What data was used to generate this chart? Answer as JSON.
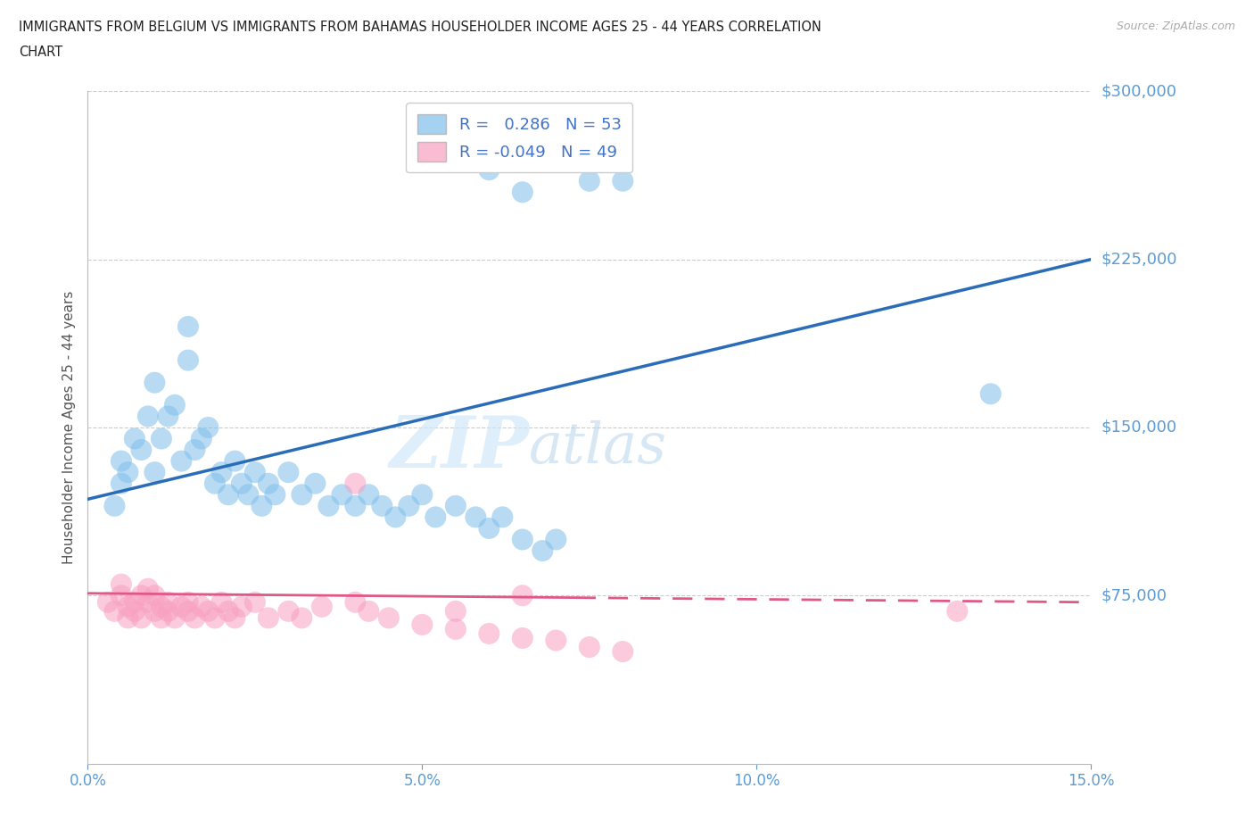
{
  "title_line1": "IMMIGRANTS FROM BELGIUM VS IMMIGRANTS FROM BAHAMAS HOUSEHOLDER INCOME AGES 25 - 44 YEARS CORRELATION",
  "title_line2": "CHART",
  "source": "Source: ZipAtlas.com",
  "ylabel": "Householder Income Ages 25 - 44 years",
  "xlim": [
    0.0,
    0.15
  ],
  "ylim": [
    0,
    300000
  ],
  "yticks": [
    0,
    75000,
    150000,
    225000,
    300000
  ],
  "ytick_labels": [
    "",
    "$75,000",
    "$150,000",
    "$225,000",
    "$300,000"
  ],
  "xticks": [
    0.0,
    0.05,
    0.1,
    0.15
  ],
  "xtick_labels": [
    "0.0%",
    "5.0%",
    "10.0%",
    "15.0%"
  ],
  "belgium_color": "#7fbfea",
  "bahamas_color": "#f8a0c0",
  "belgium_label": "Immigrants from Belgium",
  "bahamas_label": "Immigrants from Bahamas",
  "R_belgium": 0.286,
  "N_belgium": 53,
  "R_bahamas": -0.049,
  "N_bahamas": 49,
  "belgium_scatter_x": [
    0.005,
    0.005,
    0.006,
    0.007,
    0.008,
    0.009,
    0.01,
    0.01,
    0.011,
    0.012,
    0.013,
    0.014,
    0.015,
    0.016,
    0.017,
    0.018,
    0.019,
    0.02,
    0.021,
    0.022,
    0.023,
    0.024,
    0.025,
    0.026,
    0.027,
    0.028,
    0.03,
    0.032,
    0.034,
    0.036,
    0.038,
    0.04,
    0.042,
    0.044,
    0.046,
    0.048,
    0.05,
    0.052,
    0.055,
    0.058,
    0.06,
    0.062,
    0.065,
    0.068,
    0.07,
    0.055,
    0.06,
    0.065,
    0.075,
    0.08,
    0.135,
    0.004,
    0.015
  ],
  "belgium_scatter_y": [
    125000,
    135000,
    130000,
    145000,
    140000,
    155000,
    170000,
    130000,
    145000,
    155000,
    160000,
    135000,
    180000,
    140000,
    145000,
    150000,
    125000,
    130000,
    120000,
    135000,
    125000,
    120000,
    130000,
    115000,
    125000,
    120000,
    130000,
    120000,
    125000,
    115000,
    120000,
    115000,
    120000,
    115000,
    110000,
    115000,
    120000,
    110000,
    115000,
    110000,
    105000,
    110000,
    100000,
    95000,
    100000,
    270000,
    265000,
    255000,
    260000,
    260000,
    165000,
    115000,
    195000
  ],
  "bahamas_scatter_x": [
    0.003,
    0.004,
    0.005,
    0.005,
    0.006,
    0.006,
    0.007,
    0.007,
    0.008,
    0.008,
    0.009,
    0.009,
    0.01,
    0.01,
    0.011,
    0.011,
    0.012,
    0.012,
    0.013,
    0.014,
    0.015,
    0.015,
    0.016,
    0.017,
    0.018,
    0.019,
    0.02,
    0.021,
    0.022,
    0.023,
    0.025,
    0.027,
    0.03,
    0.032,
    0.035,
    0.04,
    0.042,
    0.045,
    0.05,
    0.055,
    0.06,
    0.065,
    0.07,
    0.075,
    0.08,
    0.04,
    0.055,
    0.065,
    0.13
  ],
  "bahamas_scatter_y": [
    72000,
    68000,
    75000,
    80000,
    65000,
    70000,
    72000,
    68000,
    75000,
    65000,
    78000,
    72000,
    68000,
    75000,
    65000,
    70000,
    68000,
    72000,
    65000,
    70000,
    72000,
    68000,
    65000,
    70000,
    68000,
    65000,
    72000,
    68000,
    65000,
    70000,
    72000,
    65000,
    68000,
    65000,
    70000,
    72000,
    68000,
    65000,
    62000,
    60000,
    58000,
    56000,
    55000,
    52000,
    50000,
    125000,
    68000,
    75000,
    68000
  ],
  "watermark_zip": "ZIP",
  "watermark_atlas": "atlas",
  "background_color": "#ffffff",
  "grid_color": "#cccccc",
  "trend_blue_color": "#2b6cb8",
  "trend_pink_color": "#e05888",
  "axis_label_color": "#5b9bd5",
  "tick_color": "#5b9bd5",
  "legend_r_color": "#4472c4",
  "legend_r2_color": "#e05888",
  "bel_line_x0": 0.0,
  "bel_line_y0": 118000,
  "bel_line_x1": 0.15,
  "bel_line_y1": 225000,
  "bah_line_x0": 0.0,
  "bah_line_y0": 76000,
  "bah_line_x1": 0.15,
  "bah_line_y1": 72000
}
